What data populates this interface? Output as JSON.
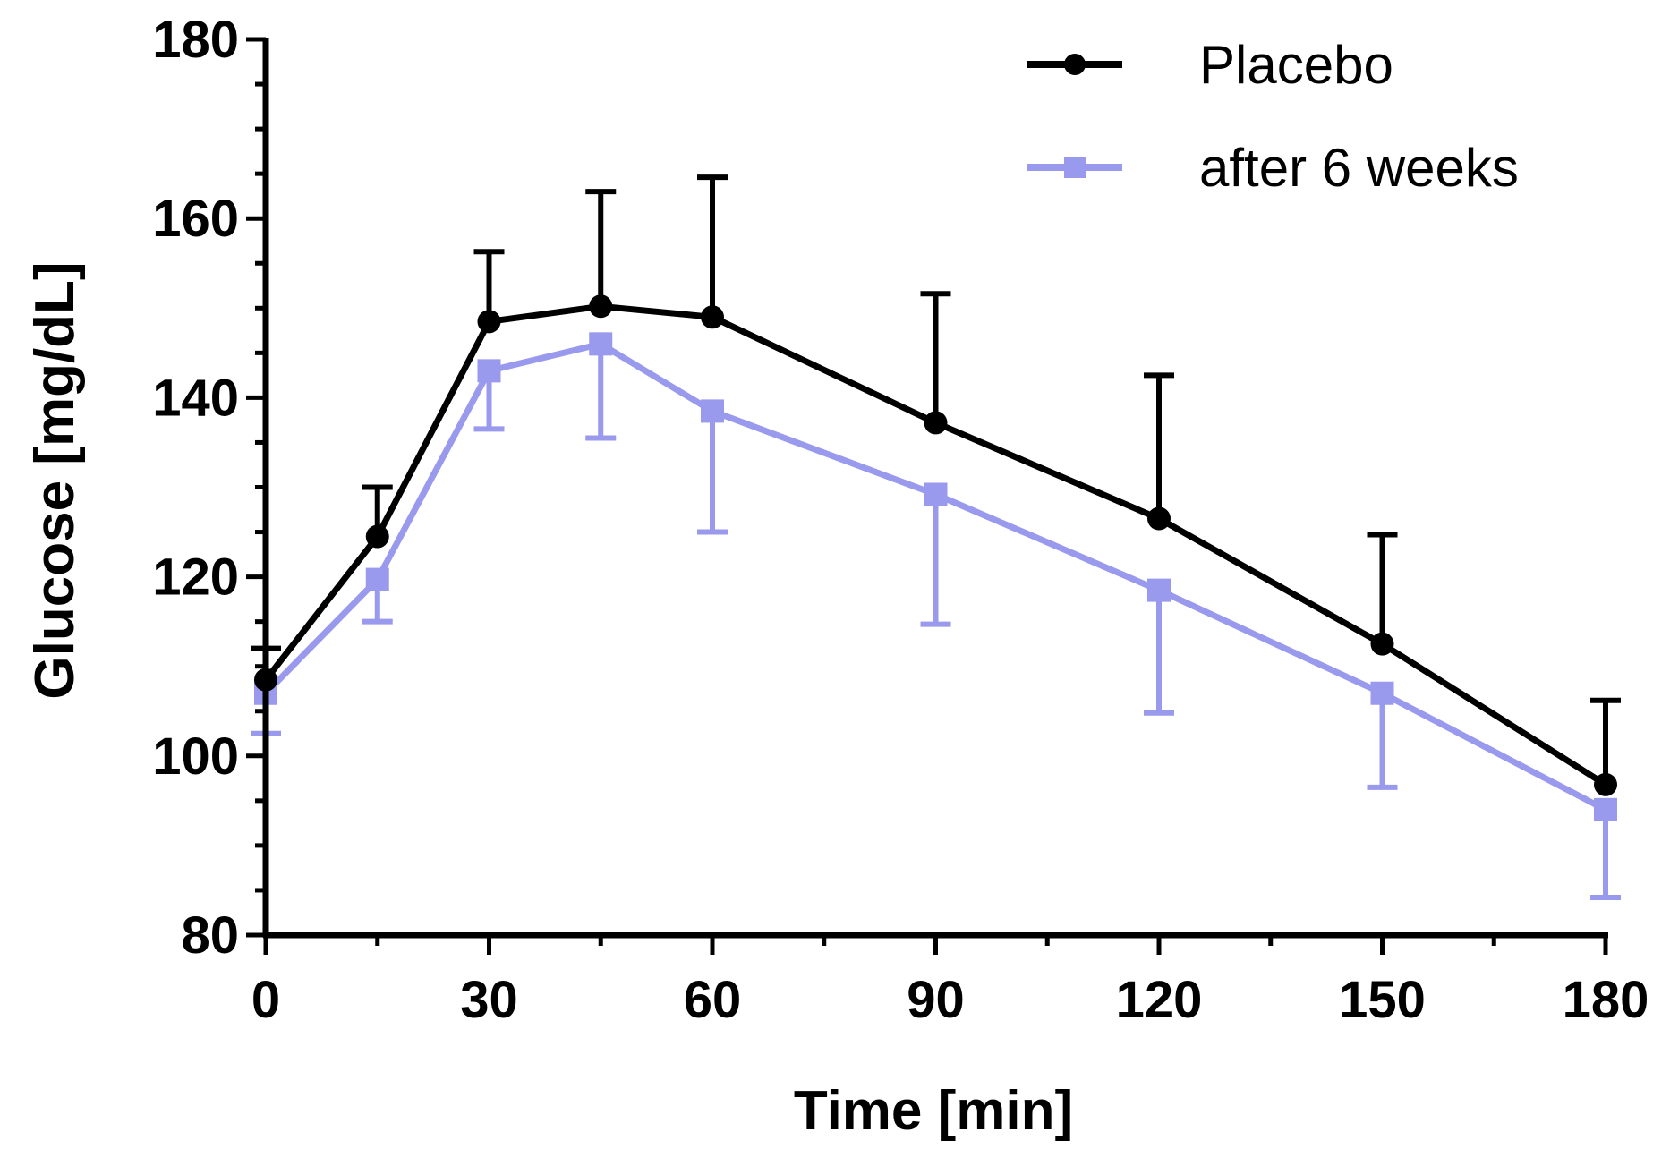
{
  "chart_data": {
    "type": "line",
    "title": "",
    "xlabel": "Time [min]",
    "ylabel": "Glucose [mg/dL]",
    "xlim": [
      0,
      180
    ],
    "ylim": [
      80,
      180
    ],
    "x_ticks": [
      0,
      30,
      60,
      90,
      120,
      150,
      180
    ],
    "y_ticks": [
      80,
      100,
      120,
      140,
      160,
      180
    ],
    "x_tick_labels": [
      "0",
      "30",
      "60",
      "90",
      "120",
      "150",
      "180"
    ],
    "y_tick_labels": [
      "80",
      "100",
      "120",
      "140",
      "160",
      "180"
    ],
    "grid": false,
    "legend_position": "top-right",
    "series": [
      {
        "name": "Placebo",
        "color": "#000000",
        "marker": "circle",
        "error_direction": "up",
        "points": [
          {
            "x": 0,
            "y": 108.5,
            "err": 3.5
          },
          {
            "x": 15,
            "y": 124.5,
            "err": 5.5
          },
          {
            "x": 30,
            "y": 148.5,
            "err": 7.8
          },
          {
            "x": 45,
            "y": 150.2,
            "err": 12.8
          },
          {
            "x": 60,
            "y": 149.0,
            "err": 15.6
          },
          {
            "x": 90,
            "y": 137.2,
            "err": 14.4
          },
          {
            "x": 120,
            "y": 126.5,
            "err": 16.0
          },
          {
            "x": 150,
            "y": 112.5,
            "err": 12.2
          },
          {
            "x": 180,
            "y": 96.8,
            "err": 9.4
          }
        ]
      },
      {
        "name": "after 6 weeks",
        "color": "#9999ee",
        "marker": "square",
        "error_direction": "down",
        "points": [
          {
            "x": 0,
            "y": 107.0,
            "err": 4.5
          },
          {
            "x": 15,
            "y": 119.7,
            "err": 4.7
          },
          {
            "x": 30,
            "y": 143.0,
            "err": 6.5
          },
          {
            "x": 45,
            "y": 146.0,
            "err": 10.5
          },
          {
            "x": 60,
            "y": 138.5,
            "err": 13.5
          },
          {
            "x": 90,
            "y": 129.2,
            "err": 14.5
          },
          {
            "x": 120,
            "y": 118.5,
            "err": 13.7
          },
          {
            "x": 150,
            "y": 107.0,
            "err": 10.5
          },
          {
            "x": 180,
            "y": 94.0,
            "err": 9.8
          }
        ]
      }
    ]
  }
}
